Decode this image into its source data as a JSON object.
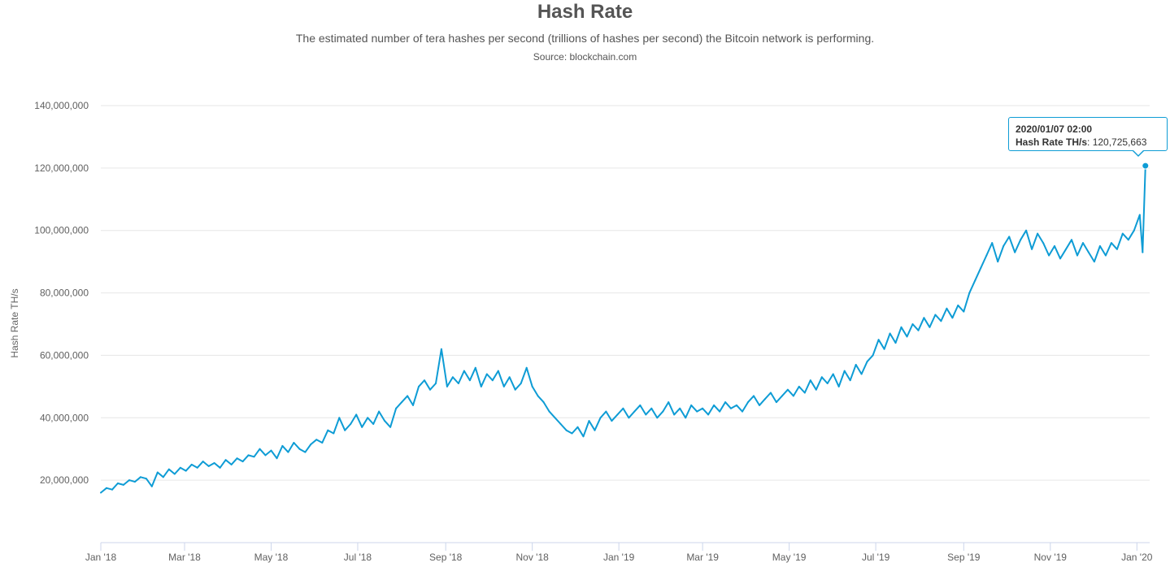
{
  "chart_data": {
    "type": "line",
    "title": "Hash Rate",
    "subtitle": "The estimated number of tera hashes per second (trillions of hashes per second) the Bitcoin network is performing.",
    "source": "Source: blockchain.com",
    "ylabel": "Hash Rate TH/s",
    "xlabel": "",
    "ylim": [
      0,
      140000000
    ],
    "xlim": [
      "2018-01-01",
      "2020-01-10"
    ],
    "y_ticks": [
      {
        "value": 20000000,
        "label": "20,000,000"
      },
      {
        "value": 40000000,
        "label": "40,000,000"
      },
      {
        "value": 60000000,
        "label": "60,000,000"
      },
      {
        "value": 80000000,
        "label": "80,000,000"
      },
      {
        "value": 100000000,
        "label": "100,000,000"
      },
      {
        "value": 120000000,
        "label": "120,000,000"
      },
      {
        "value": 140000000,
        "label": "140,000,000"
      }
    ],
    "x_ticks": [
      {
        "date": "2018-01-01",
        "label": "Jan '18"
      },
      {
        "date": "2018-03-01",
        "label": "Mar '18"
      },
      {
        "date": "2018-05-01",
        "label": "May '18"
      },
      {
        "date": "2018-07-01",
        "label": "Jul '18"
      },
      {
        "date": "2018-09-01",
        "label": "Sep '18"
      },
      {
        "date": "2018-11-01",
        "label": "Nov '18"
      },
      {
        "date": "2019-01-01",
        "label": "Jan '19"
      },
      {
        "date": "2019-03-01",
        "label": "Mar '19"
      },
      {
        "date": "2019-05-01",
        "label": "May '19"
      },
      {
        "date": "2019-07-01",
        "label": "Jul '19"
      },
      {
        "date": "2019-09-01",
        "label": "Sep '19"
      },
      {
        "date": "2019-11-01",
        "label": "Nov '19"
      },
      {
        "date": "2020-01-01",
        "label": "Jan '20"
      }
    ],
    "grid": true,
    "legend": "none",
    "series": [
      {
        "color": "#0e9cd5",
        "points": [
          [
            "2018-01-01",
            16000000
          ],
          [
            "2018-01-05",
            17500000
          ],
          [
            "2018-01-09",
            17000000
          ],
          [
            "2018-01-13",
            19000000
          ],
          [
            "2018-01-17",
            18500000
          ],
          [
            "2018-01-21",
            20000000
          ],
          [
            "2018-01-25",
            19500000
          ],
          [
            "2018-01-29",
            21000000
          ],
          [
            "2018-02-02",
            20500000
          ],
          [
            "2018-02-06",
            18000000
          ],
          [
            "2018-02-10",
            22500000
          ],
          [
            "2018-02-14",
            21000000
          ],
          [
            "2018-02-18",
            23500000
          ],
          [
            "2018-02-22",
            22000000
          ],
          [
            "2018-02-26",
            24000000
          ],
          [
            "2018-03-02",
            23000000
          ],
          [
            "2018-03-06",
            25000000
          ],
          [
            "2018-03-10",
            24000000
          ],
          [
            "2018-03-14",
            26000000
          ],
          [
            "2018-03-18",
            24500000
          ],
          [
            "2018-03-22",
            25500000
          ],
          [
            "2018-03-26",
            24000000
          ],
          [
            "2018-03-30",
            26500000
          ],
          [
            "2018-04-03",
            25000000
          ],
          [
            "2018-04-07",
            27000000
          ],
          [
            "2018-04-11",
            26000000
          ],
          [
            "2018-04-15",
            28000000
          ],
          [
            "2018-04-19",
            27500000
          ],
          [
            "2018-04-23",
            30000000
          ],
          [
            "2018-04-27",
            28000000
          ],
          [
            "2018-05-01",
            29500000
          ],
          [
            "2018-05-05",
            27000000
          ],
          [
            "2018-05-09",
            31000000
          ],
          [
            "2018-05-13",
            29000000
          ],
          [
            "2018-05-17",
            32000000
          ],
          [
            "2018-05-21",
            30000000
          ],
          [
            "2018-05-25",
            29000000
          ],
          [
            "2018-05-29",
            31500000
          ],
          [
            "2018-06-02",
            33000000
          ],
          [
            "2018-06-06",
            32000000
          ],
          [
            "2018-06-10",
            36000000
          ],
          [
            "2018-06-14",
            35000000
          ],
          [
            "2018-06-18",
            40000000
          ],
          [
            "2018-06-22",
            36000000
          ],
          [
            "2018-06-26",
            38000000
          ],
          [
            "2018-06-30",
            41000000
          ],
          [
            "2018-07-04",
            37000000
          ],
          [
            "2018-07-08",
            40000000
          ],
          [
            "2018-07-12",
            38000000
          ],
          [
            "2018-07-16",
            42000000
          ],
          [
            "2018-07-20",
            39000000
          ],
          [
            "2018-07-24",
            37000000
          ],
          [
            "2018-07-28",
            43000000
          ],
          [
            "2018-08-01",
            45000000
          ],
          [
            "2018-08-05",
            47000000
          ],
          [
            "2018-08-09",
            44000000
          ],
          [
            "2018-08-13",
            50000000
          ],
          [
            "2018-08-17",
            52000000
          ],
          [
            "2018-08-21",
            49000000
          ],
          [
            "2018-08-25",
            51000000
          ],
          [
            "2018-08-29",
            62000000
          ],
          [
            "2018-09-02",
            50000000
          ],
          [
            "2018-09-06",
            53000000
          ],
          [
            "2018-09-10",
            51000000
          ],
          [
            "2018-09-14",
            55000000
          ],
          [
            "2018-09-18",
            52000000
          ],
          [
            "2018-09-22",
            56000000
          ],
          [
            "2018-09-26",
            50000000
          ],
          [
            "2018-09-30",
            54000000
          ],
          [
            "2018-10-04",
            52000000
          ],
          [
            "2018-10-08",
            55000000
          ],
          [
            "2018-10-12",
            50000000
          ],
          [
            "2018-10-16",
            53000000
          ],
          [
            "2018-10-20",
            49000000
          ],
          [
            "2018-10-24",
            51000000
          ],
          [
            "2018-10-28",
            56000000
          ],
          [
            "2018-11-01",
            50000000
          ],
          [
            "2018-11-05",
            47000000
          ],
          [
            "2018-11-09",
            45000000
          ],
          [
            "2018-11-13",
            42000000
          ],
          [
            "2018-11-17",
            40000000
          ],
          [
            "2018-11-21",
            38000000
          ],
          [
            "2018-11-25",
            36000000
          ],
          [
            "2018-11-29",
            35000000
          ],
          [
            "2018-12-03",
            37000000
          ],
          [
            "2018-12-07",
            34000000
          ],
          [
            "2018-12-11",
            39000000
          ],
          [
            "2018-12-15",
            36000000
          ],
          [
            "2018-12-19",
            40000000
          ],
          [
            "2018-12-23",
            42000000
          ],
          [
            "2018-12-27",
            39000000
          ],
          [
            "2018-12-31",
            41000000
          ],
          [
            "2019-01-04",
            43000000
          ],
          [
            "2019-01-08",
            40000000
          ],
          [
            "2019-01-12",
            42000000
          ],
          [
            "2019-01-16",
            44000000
          ],
          [
            "2019-01-20",
            41000000
          ],
          [
            "2019-01-24",
            43000000
          ],
          [
            "2019-01-28",
            40000000
          ],
          [
            "2019-02-01",
            42000000
          ],
          [
            "2019-02-05",
            45000000
          ],
          [
            "2019-02-09",
            41000000
          ],
          [
            "2019-02-13",
            43000000
          ],
          [
            "2019-02-17",
            40000000
          ],
          [
            "2019-02-21",
            44000000
          ],
          [
            "2019-02-25",
            42000000
          ],
          [
            "2019-03-01",
            43000000
          ],
          [
            "2019-03-05",
            41000000
          ],
          [
            "2019-03-09",
            44000000
          ],
          [
            "2019-03-13",
            42000000
          ],
          [
            "2019-03-17",
            45000000
          ],
          [
            "2019-03-21",
            43000000
          ],
          [
            "2019-03-25",
            44000000
          ],
          [
            "2019-03-29",
            42000000
          ],
          [
            "2019-04-02",
            45000000
          ],
          [
            "2019-04-06",
            47000000
          ],
          [
            "2019-04-10",
            44000000
          ],
          [
            "2019-04-14",
            46000000
          ],
          [
            "2019-04-18",
            48000000
          ],
          [
            "2019-04-22",
            45000000
          ],
          [
            "2019-04-26",
            47000000
          ],
          [
            "2019-04-30",
            49000000
          ],
          [
            "2019-05-04",
            47000000
          ],
          [
            "2019-05-08",
            50000000
          ],
          [
            "2019-05-12",
            48000000
          ],
          [
            "2019-05-16",
            52000000
          ],
          [
            "2019-05-20",
            49000000
          ],
          [
            "2019-05-24",
            53000000
          ],
          [
            "2019-05-28",
            51000000
          ],
          [
            "2019-06-01",
            54000000
          ],
          [
            "2019-06-05",
            50000000
          ],
          [
            "2019-06-09",
            55000000
          ],
          [
            "2019-06-13",
            52000000
          ],
          [
            "2019-06-17",
            57000000
          ],
          [
            "2019-06-21",
            54000000
          ],
          [
            "2019-06-25",
            58000000
          ],
          [
            "2019-06-29",
            60000000
          ],
          [
            "2019-07-03",
            65000000
          ],
          [
            "2019-07-07",
            62000000
          ],
          [
            "2019-07-11",
            67000000
          ],
          [
            "2019-07-15",
            64000000
          ],
          [
            "2019-07-19",
            69000000
          ],
          [
            "2019-07-23",
            66000000
          ],
          [
            "2019-07-27",
            70000000
          ],
          [
            "2019-07-31",
            68000000
          ],
          [
            "2019-08-04",
            72000000
          ],
          [
            "2019-08-08",
            69000000
          ],
          [
            "2019-08-12",
            73000000
          ],
          [
            "2019-08-16",
            71000000
          ],
          [
            "2019-08-20",
            75000000
          ],
          [
            "2019-08-24",
            72000000
          ],
          [
            "2019-08-28",
            76000000
          ],
          [
            "2019-09-01",
            74000000
          ],
          [
            "2019-09-05",
            80000000
          ],
          [
            "2019-09-09",
            84000000
          ],
          [
            "2019-09-13",
            88000000
          ],
          [
            "2019-09-17",
            92000000
          ],
          [
            "2019-09-21",
            96000000
          ],
          [
            "2019-09-25",
            90000000
          ],
          [
            "2019-09-29",
            95000000
          ],
          [
            "2019-10-03",
            98000000
          ],
          [
            "2019-10-07",
            93000000
          ],
          [
            "2019-10-11",
            97000000
          ],
          [
            "2019-10-15",
            100000000
          ],
          [
            "2019-10-19",
            94000000
          ],
          [
            "2019-10-23",
            99000000
          ],
          [
            "2019-10-27",
            96000000
          ],
          [
            "2019-10-31",
            92000000
          ],
          [
            "2019-11-04",
            95000000
          ],
          [
            "2019-11-08",
            91000000
          ],
          [
            "2019-11-12",
            94000000
          ],
          [
            "2019-11-16",
            97000000
          ],
          [
            "2019-11-20",
            92000000
          ],
          [
            "2019-11-24",
            96000000
          ],
          [
            "2019-11-28",
            93000000
          ],
          [
            "2019-12-02",
            90000000
          ],
          [
            "2019-12-06",
            95000000
          ],
          [
            "2019-12-10",
            92000000
          ],
          [
            "2019-12-14",
            96000000
          ],
          [
            "2019-12-18",
            94000000
          ],
          [
            "2019-12-22",
            99000000
          ],
          [
            "2019-12-26",
            97000000
          ],
          [
            "2019-12-30",
            100000000
          ],
          [
            "2020-01-03",
            105000000
          ],
          [
            "2020-01-05",
            93000000
          ],
          [
            "2020-01-07",
            120725663
          ]
        ]
      }
    ],
    "tooltip": {
      "date": "2020/01/07 02:00",
      "series_name": "Hash Rate TH/s",
      "separator": ": ",
      "value": "120,725,663"
    }
  }
}
